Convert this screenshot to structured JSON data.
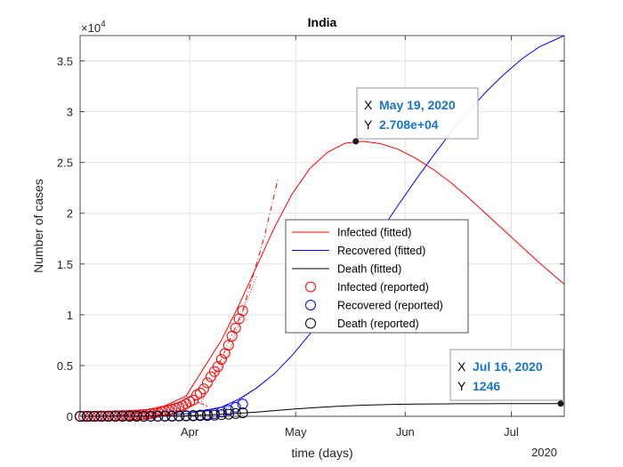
{
  "chart_data": {
    "type": "line",
    "title": "India",
    "xlabel": "time (days)",
    "ylabel": "Number of cases",
    "y_exponent_label": "×10",
    "y_exponent_power": "4",
    "year_label": "2020",
    "x_tick_labels": [
      "Apr",
      "May",
      "Jun",
      "Jul"
    ],
    "x_tick_days": [
      31,
      61,
      92,
      122
    ],
    "y_tick_labels": [
      "0",
      "0.5",
      "1",
      "1.5",
      "2",
      "2.5",
      "3",
      "3.5"
    ],
    "y_tick_values": [
      0,
      5000,
      10000,
      15000,
      20000,
      25000,
      30000,
      35000
    ],
    "x_range_days": [
      0,
      137
    ],
    "x_day0": "2020-03-02",
    "ylim": [
      0,
      37500
    ],
    "grid": true,
    "legend_placement": "center-right",
    "series": [
      {
        "name": "Infected (fitted)",
        "style": "line",
        "color": "#ff0000",
        "x": [
          0,
          10,
          20,
          30,
          40,
          45,
          50,
          55,
          60,
          65,
          70,
          75,
          80,
          85,
          90,
          95,
          100,
          105,
          110,
          115,
          120,
          125,
          130,
          137
        ],
        "y": [
          0,
          50,
          400,
          2000,
          7500,
          11000,
          14800,
          18600,
          21900,
          24400,
          26000,
          26900,
          27080,
          26850,
          26300,
          25400,
          24300,
          23000,
          21500,
          19900,
          18300,
          16700,
          15100,
          13000
        ]
      },
      {
        "name": "Recovered (fitted)",
        "style": "line",
        "color": "#0000ff",
        "x": [
          0,
          20,
          30,
          40,
          45,
          50,
          55,
          60,
          65,
          70,
          75,
          80,
          85,
          90,
          95,
          100,
          105,
          110,
          115,
          120,
          125,
          130,
          137
        ],
        "y": [
          0,
          50,
          250,
          900,
          1700,
          2800,
          4200,
          6000,
          8100,
          10500,
          13000,
          15600,
          18200,
          20800,
          23300,
          25700,
          28000,
          30100,
          32000,
          33700,
          35200,
          36400,
          37500
        ]
      },
      {
        "name": "Death (fitted)",
        "style": "line",
        "color": "#000000",
        "x": [
          0,
          20,
          30,
          40,
          45,
          50,
          55,
          60,
          65,
          70,
          75,
          80,
          85,
          90,
          95,
          100,
          105,
          110,
          115,
          120,
          125,
          130,
          137
        ],
        "y": [
          0,
          10,
          60,
          200,
          300,
          420,
          560,
          700,
          820,
          930,
          1020,
          1090,
          1140,
          1180,
          1205,
          1220,
          1232,
          1238,
          1242,
          1244,
          1245,
          1246,
          1246
        ]
      },
      {
        "name": "Infected (reported)",
        "style": "circle",
        "color": "#ff0000",
        "x": [
          0,
          1,
          2,
          3,
          4,
          5,
          6,
          7,
          8,
          9,
          10,
          11,
          12,
          13,
          14,
          15,
          16,
          17,
          18,
          19,
          20,
          21,
          22,
          23,
          24,
          25,
          26,
          27,
          28,
          29,
          30,
          31,
          32,
          33,
          34,
          35,
          36,
          37,
          38,
          39,
          40,
          41,
          42,
          43,
          44,
          45,
          46
        ],
        "y": [
          0,
          0,
          0,
          0,
          5,
          25,
          30,
          30,
          35,
          40,
          50,
          60,
          70,
          80,
          100,
          110,
          120,
          150,
          180,
          210,
          260,
          320,
          400,
          480,
          540,
          600,
          700,
          800,
          900,
          1050,
          1250,
          1450,
          1600,
          2100,
          2300,
          2700,
          3300,
          3900,
          4400,
          4900,
          5600,
          6200,
          7000,
          7900,
          8700,
          9600,
          10400
        ]
      },
      {
        "name": "Recovered (reported)",
        "style": "circle",
        "color": "#0000ff",
        "x": [
          0,
          2,
          4,
          6,
          8,
          10,
          12,
          14,
          16,
          18,
          20,
          22,
          24,
          26,
          28,
          30,
          32,
          34,
          36,
          38,
          40,
          42,
          44,
          46
        ],
        "y": [
          0,
          0,
          0,
          0,
          0,
          0,
          5,
          10,
          10,
          15,
          20,
          25,
          35,
          40,
          50,
          70,
          90,
          120,
          180,
          260,
          410,
          600,
          900,
          1200
        ]
      },
      {
        "name": "Death  (reported)",
        "style": "circle",
        "color": "#000000",
        "x": [
          0,
          2,
          4,
          6,
          8,
          10,
          12,
          14,
          16,
          18,
          20,
          22,
          24,
          26,
          28,
          30,
          32,
          34,
          36,
          38,
          40,
          42,
          44,
          46
        ],
        "y": [
          0,
          0,
          0,
          0,
          0,
          0,
          0,
          0,
          2,
          3,
          5,
          8,
          10,
          15,
          20,
          30,
          40,
          60,
          80,
          110,
          160,
          210,
          270,
          340
        ]
      }
    ],
    "datatips": [
      {
        "x_label": "X",
        "x_value": "May 19, 2020",
        "y_label": "Y",
        "y_value": "2.708e+04",
        "day": 78,
        "y": 27080
      },
      {
        "x_label": "X",
        "x_value": "Jul 16, 2020",
        "y_label": "Y",
        "y_value": "1246",
        "day": 136,
        "y": 1246
      }
    ]
  }
}
